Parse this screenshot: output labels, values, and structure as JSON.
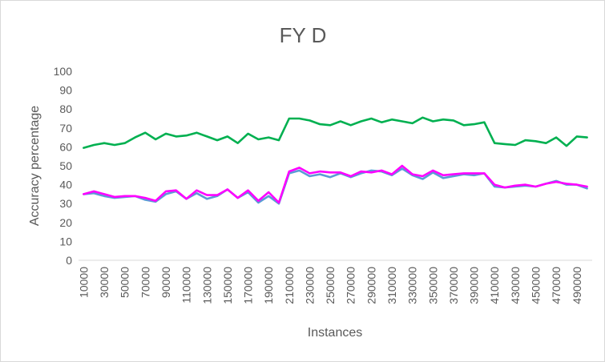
{
  "chart_data": {
    "type": "line",
    "title": "FY D",
    "xlabel": "Instances",
    "ylabel": "Accuracy percentage",
    "ylim": [
      0,
      100
    ],
    "yticks": [
      0,
      10,
      20,
      30,
      40,
      50,
      60,
      70,
      80,
      90,
      100
    ],
    "grid": false,
    "legend": "none",
    "x": [
      10000,
      20000,
      30000,
      40000,
      50000,
      60000,
      70000,
      80000,
      90000,
      100000,
      110000,
      120000,
      130000,
      140000,
      150000,
      160000,
      170000,
      180000,
      190000,
      200000,
      210000,
      220000,
      230000,
      240000,
      250000,
      260000,
      270000,
      280000,
      290000,
      300000,
      310000,
      320000,
      330000,
      340000,
      350000,
      360000,
      370000,
      380000,
      390000,
      400000,
      410000,
      420000,
      430000,
      440000,
      450000,
      460000,
      470000,
      480000,
      490000,
      500000
    ],
    "xtick_labels": [
      "10000",
      "30000",
      "50000",
      "70000",
      "90000",
      "110000",
      "130000",
      "150000",
      "170000",
      "190000",
      "210000",
      "230000",
      "250000",
      "270000",
      "290000",
      "310000",
      "330000",
      "350000",
      "370000",
      "390000",
      "410000",
      "430000",
      "450000",
      "470000",
      "490000"
    ],
    "series": [
      {
        "color": "#00b050",
        "values": [
          59.5,
          61,
          62,
          61,
          62,
          65,
          67.5,
          64,
          67,
          65.5,
          66,
          67.5,
          65.5,
          63.5,
          65.5,
          62,
          67,
          64,
          65,
          63.5,
          75,
          75,
          74,
          72,
          71.5,
          73.5,
          71.5,
          73.5,
          75,
          73,
          74.5,
          73.5,
          72.5,
          75.5,
          73.5,
          74.5,
          74,
          71.5,
          72,
          73,
          62,
          61.5,
          61,
          63.5,
          63,
          62,
          65,
          60.5,
          65.5,
          65
        ]
      },
      {
        "color": "#5b9bd5",
        "values": [
          35,
          35.5,
          34,
          33,
          33.5,
          34,
          32,
          31,
          35,
          36.5,
          32.5,
          35.5,
          32.5,
          34,
          37.5,
          33,
          36,
          30.5,
          34,
          30,
          46,
          47.5,
          44.5,
          45.5,
          44,
          46,
          44,
          46,
          47.5,
          47,
          45,
          48.5,
          45,
          43,
          46.5,
          43.5,
          44.5,
          45.5,
          45,
          46,
          39,
          38.5,
          39,
          39.5,
          39,
          40.5,
          42,
          40,
          40,
          38
        ]
      },
      {
        "color": "#ff00ff",
        "values": [
          35,
          36.5,
          35,
          33.5,
          34,
          34,
          33,
          31.5,
          36.5,
          37,
          32.5,
          37,
          34.5,
          34.5,
          37.5,
          33,
          37,
          31.5,
          36,
          30.5,
          47,
          49,
          46,
          47,
          46.5,
          46.5,
          44.5,
          47,
          46.5,
          47.5,
          45.5,
          50,
          45.5,
          44.5,
          47.5,
          45,
          45.5,
          46,
          46,
          46,
          40,
          38.5,
          39.5,
          40,
          39,
          40.5,
          41.5,
          40.5,
          40,
          39
        ]
      }
    ]
  }
}
